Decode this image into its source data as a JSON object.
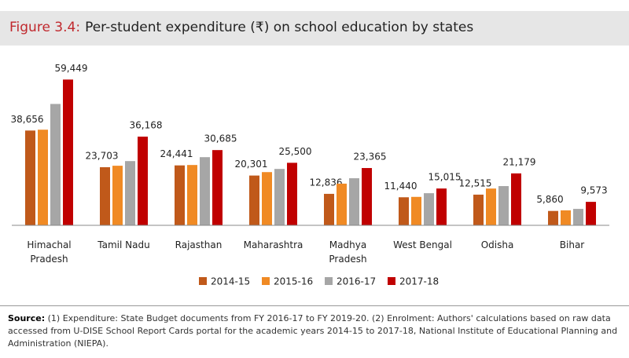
{
  "chart_data": {
    "type": "bar",
    "figure_label": "Figure 3.4:",
    "title": "Per-student expenditure (₹) on school education by states",
    "categories": [
      "Himachal Pradesh",
      "Tamil Nadu",
      "Rajasthan",
      "Maharashtra",
      "Madhya Pradesh",
      "West Bengal",
      "Odisha",
      "Bihar"
    ],
    "series": [
      {
        "name": "2014-15",
        "color": "#c0591a",
        "values": [
          38656,
          23703,
          24441,
          20301,
          12836,
          11440,
          12515,
          5860
        ],
        "value_labels": [
          "38,656",
          "23,703",
          "24,441",
          "20,301",
          "12,836",
          "11,440",
          "12,515",
          "5,860"
        ]
      },
      {
        "name": "2015-16",
        "color": "#f08a24",
        "values": [
          39000,
          24300,
          24600,
          21700,
          17000,
          11600,
          15000,
          6100
        ]
      },
      {
        "name": "2016-17",
        "color": "#a6a6a6",
        "values": [
          49500,
          26200,
          27800,
          23000,
          19200,
          13100,
          16000,
          6700
        ]
      },
      {
        "name": "2017-18",
        "color": "#c00000",
        "values": [
          59449,
          36168,
          30685,
          25500,
          23365,
          15015,
          21179,
          9573
        ],
        "value_labels": [
          "59,449",
          "36,168",
          "30,685",
          "25,500",
          "23,365",
          "15,015",
          "21,179",
          "9,573"
        ]
      }
    ],
    "ylim": [
      0,
      65000
    ],
    "source_label": "Source:",
    "source_text": "(1) Expenditure: State Budget documents from FY 2016-17 to FY 2019-20. (2) Enrolment: Authors' calculations based on raw data accessed from U-DISE School Report Cards portal for the academic years 2014-15 to 2017-18, National Institute of Educational Planning and Administration (NIEPA)."
  }
}
